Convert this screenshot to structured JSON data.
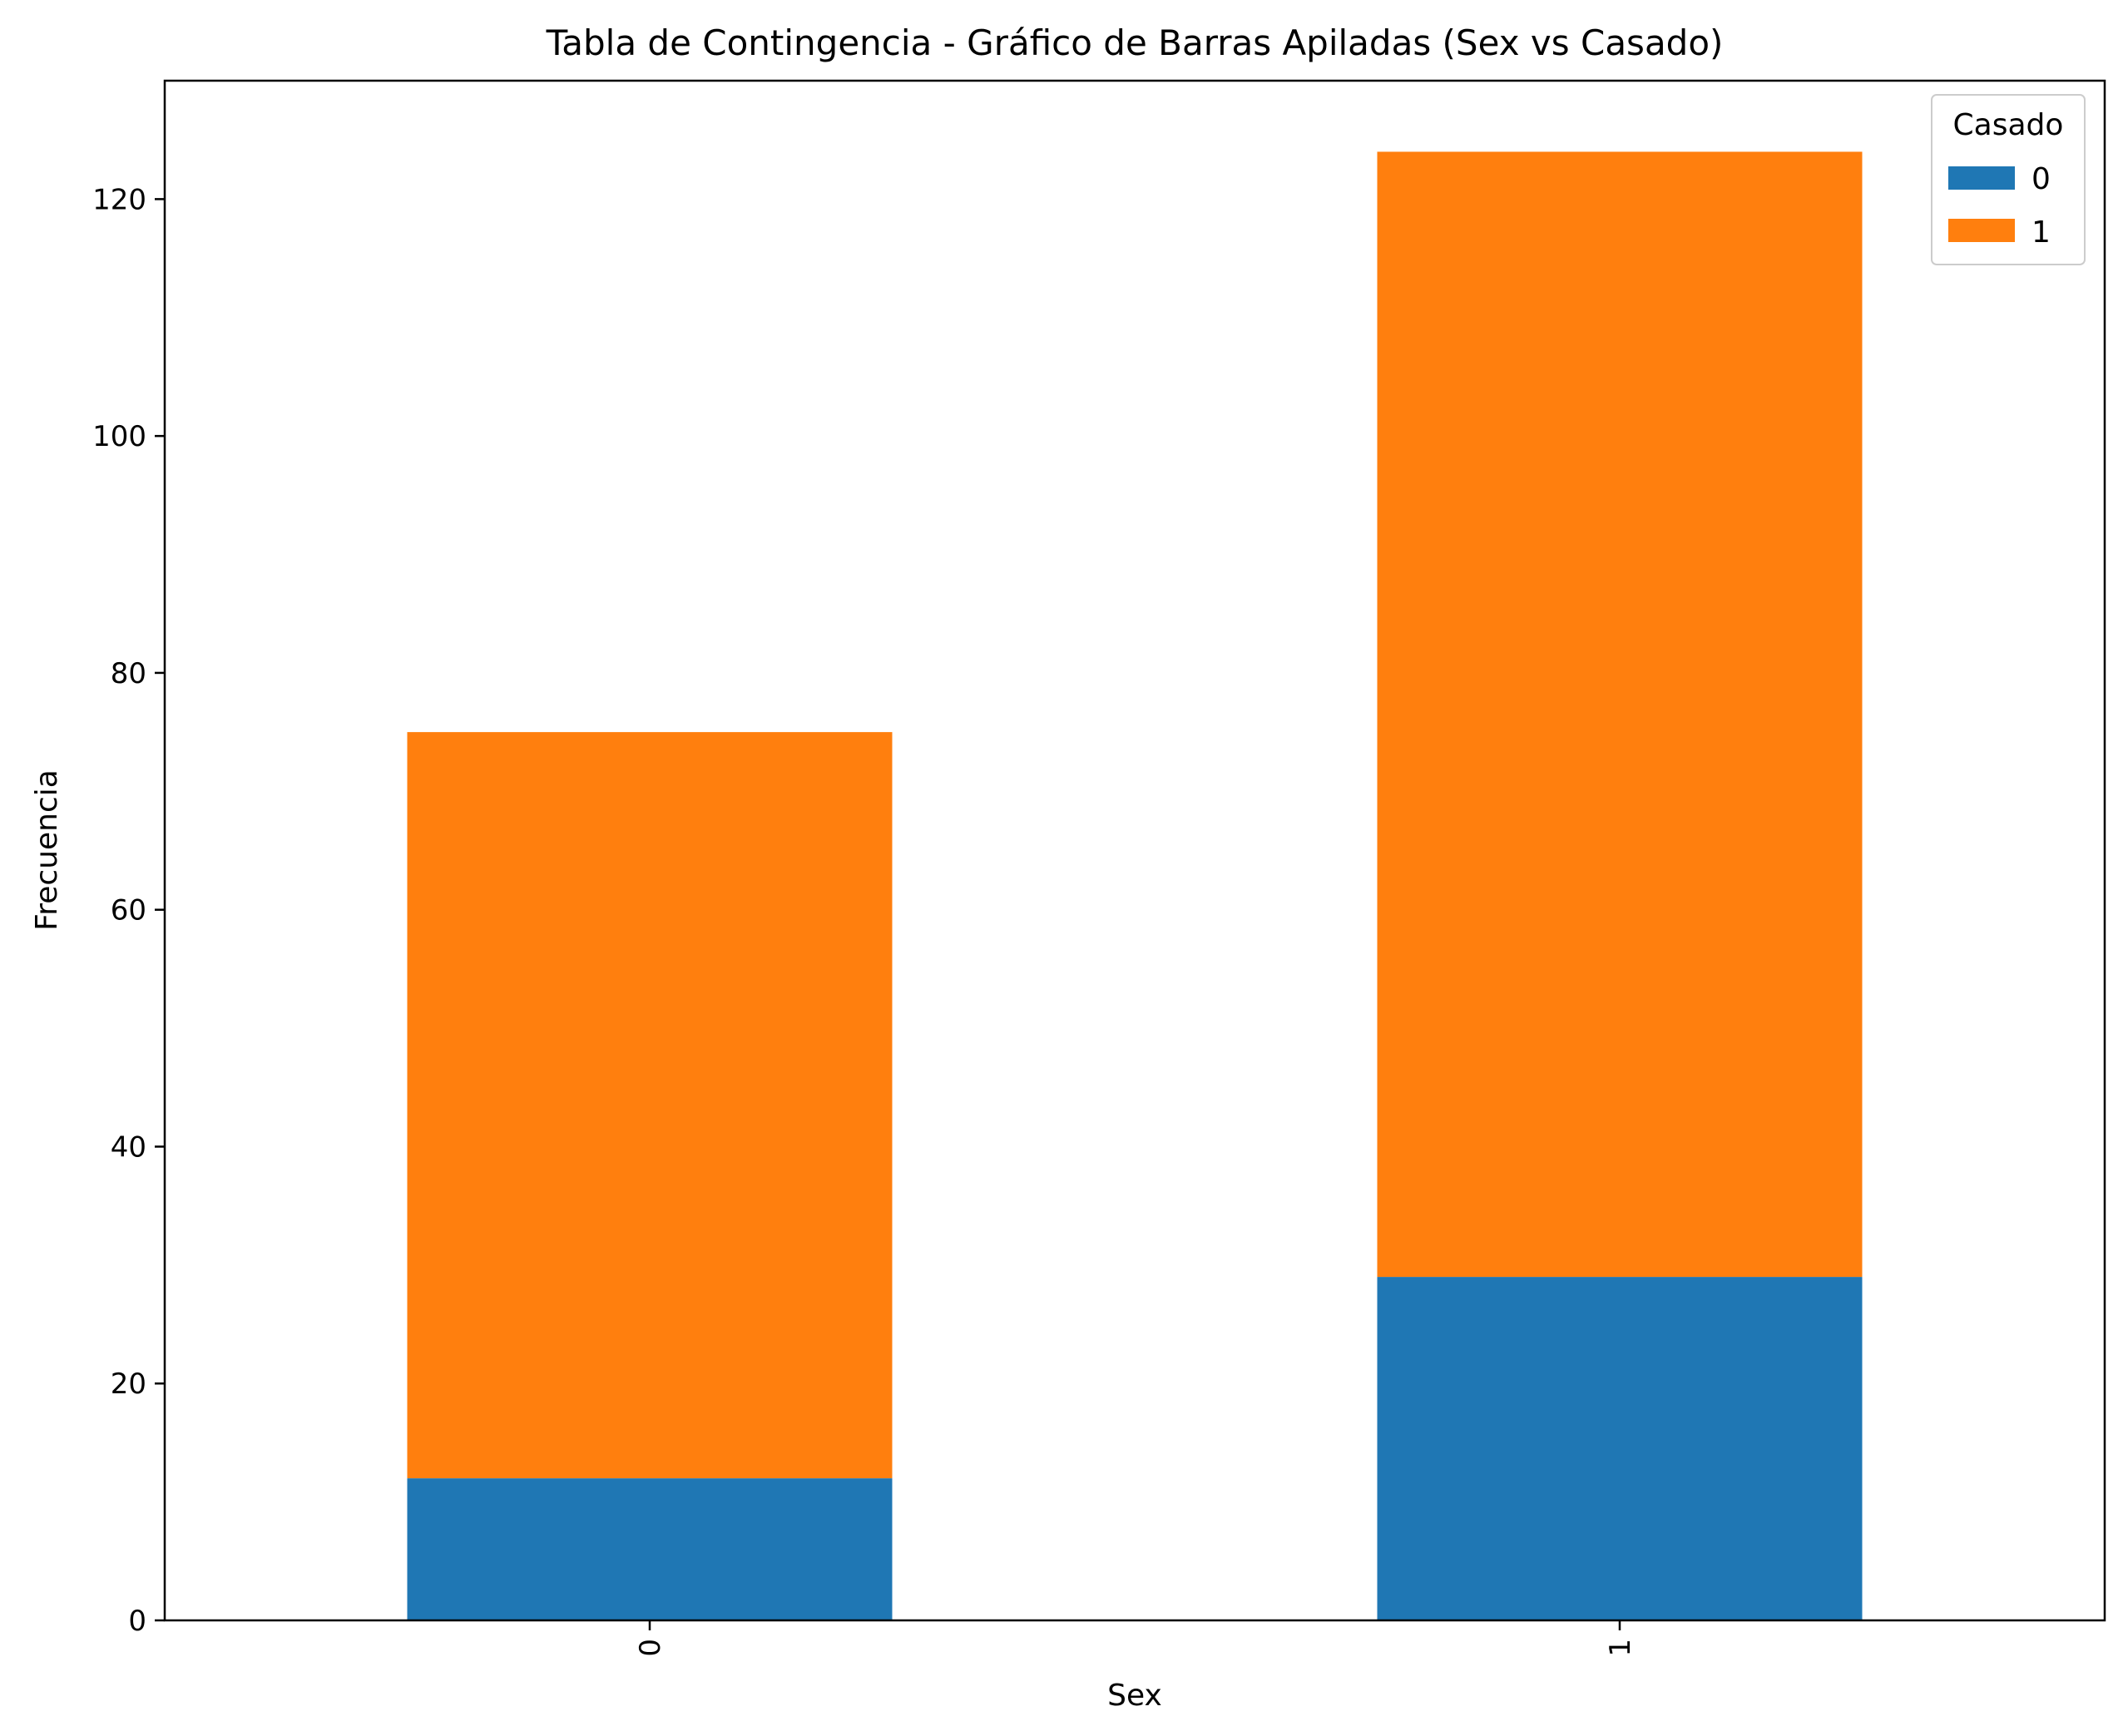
{
  "chart_data": {
    "type": "bar",
    "stacked": true,
    "title": "Tabla de Contingencia - Gráfico de Barras Apiladas (Sex vs Casado)",
    "xlabel": "Sex",
    "ylabel": "Frecuencia",
    "categories": [
      "0",
      "1"
    ],
    "series": [
      {
        "name": "0",
        "values": [
          12,
          29
        ],
        "color": "#1f77b4"
      },
      {
        "name": "1",
        "values": [
          63,
          95
        ],
        "color": "#ff7f0e"
      }
    ],
    "ylim": [
      0,
      130
    ],
    "yticks": [
      0,
      20,
      40,
      60,
      80,
      100,
      120
    ],
    "grid": false,
    "legend": {
      "title": "Casado",
      "placement": "top-right"
    },
    "xtick_rotation": "vertical"
  }
}
